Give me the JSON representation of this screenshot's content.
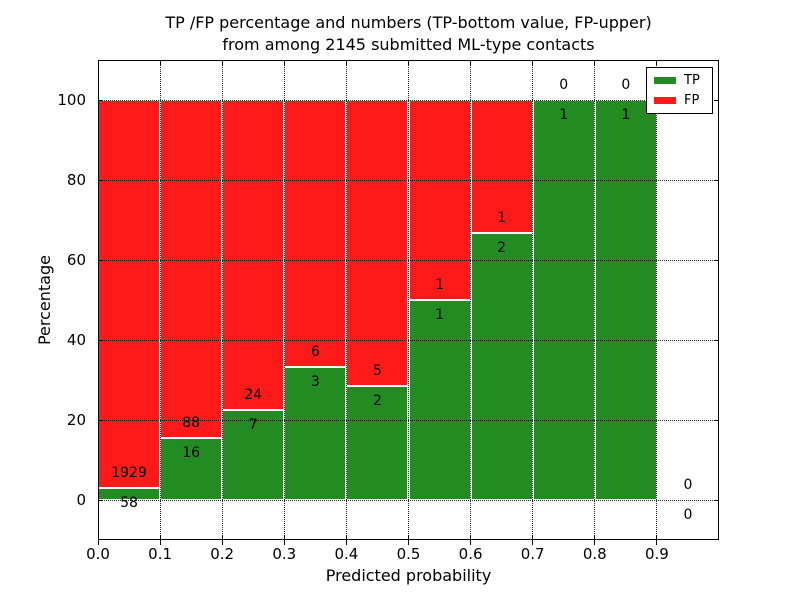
{
  "chart_data": {
    "type": "bar",
    "stacked": true,
    "orientation": "vertical",
    "title_line1": "TP /FP percentage and numbers (TP-bottom value, FP-upper)",
    "title_line2": "from among 2145 submitted ML-type contacts",
    "total_submitted_contacts": 2145,
    "xlabel": "Predicted probability",
    "ylabel": "Percentage",
    "xlim": [
      0.0,
      1.0
    ],
    "ylim": [
      -10,
      110
    ],
    "x_ticks": [
      "0.0",
      "0.1",
      "0.2",
      "0.3",
      "0.4",
      "0.5",
      "0.6",
      "0.7",
      "0.8",
      "0.9"
    ],
    "y_ticks": [
      "0",
      "20",
      "40",
      "60",
      "80",
      "100"
    ],
    "grid": "dotted",
    "legend_position": "upper-right",
    "colors": {
      "tp": "#228B22",
      "fp": "#FF1A1A",
      "grid": "#000000",
      "bar_edge": "#FFFFFF"
    },
    "legend": [
      {
        "label": "TP",
        "color_key": "tp"
      },
      {
        "label": "FP",
        "color_key": "fp"
      }
    ],
    "bins": [
      {
        "x_range": [
          0.0,
          0.1
        ],
        "tp": 58,
        "fp": 1929
      },
      {
        "x_range": [
          0.1,
          0.2
        ],
        "tp": 16,
        "fp": 88
      },
      {
        "x_range": [
          0.2,
          0.3
        ],
        "tp": 7,
        "fp": 24
      },
      {
        "x_range": [
          0.3,
          0.4
        ],
        "tp": 3,
        "fp": 6
      },
      {
        "x_range": [
          0.4,
          0.5
        ],
        "tp": 2,
        "fp": 5
      },
      {
        "x_range": [
          0.5,
          0.6
        ],
        "tp": 1,
        "fp": 1
      },
      {
        "x_range": [
          0.6,
          0.7
        ],
        "tp": 2,
        "fp": 1
      },
      {
        "x_range": [
          0.7,
          0.8
        ],
        "tp": 1,
        "fp": 0
      },
      {
        "x_range": [
          0.8,
          0.9
        ],
        "tp": 1,
        "fp": 0
      },
      {
        "x_range": [
          0.9,
          1.0
        ],
        "tp": 0,
        "fp": 0
      }
    ]
  }
}
